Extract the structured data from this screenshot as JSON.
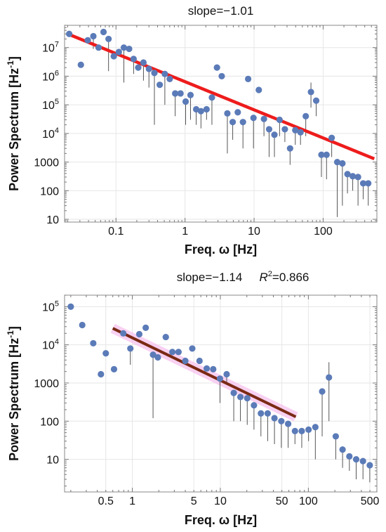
{
  "chart_data": [
    {
      "type": "scatter",
      "title": "slope=−1.01",
      "xlabel": "Freq. ω [Hz]",
      "ylabel": "Power Spectrum [Hz⁻¹]",
      "xscale": "log",
      "yscale": "log",
      "xlim": [
        0.018,
        600
      ],
      "ylim": [
        8,
        60000000
      ],
      "xticks": [
        {
          "v": 0.1,
          "label": "0.1"
        },
        {
          "v": 1,
          "label": "1"
        },
        {
          "v": 10,
          "label": "10"
        },
        {
          "v": 100,
          "label": "100"
        }
      ],
      "yticks": [
        {
          "v": 10,
          "label": "10"
        },
        {
          "v": 100,
          "label": "100"
        },
        {
          "v": 1000,
          "label": "1000"
        },
        {
          "v": 10000,
          "label": "10^4"
        },
        {
          "v": 100000,
          "label": "10^5"
        },
        {
          "v": 1000000,
          "label": "10^6"
        },
        {
          "v": 10000000,
          "label": "10^7"
        }
      ],
      "grid": true,
      "marker_color": "#5b7bb8",
      "fit_color": "#ee1c1c",
      "fit_line": {
        "x": [
          0.02,
          550
        ],
        "y": [
          30000000,
          1300
        ]
      },
      "points": [
        {
          "x": 0.021,
          "y": 30000000
        },
        {
          "x": 0.031,
          "y": 2500000
        },
        {
          "x": 0.039,
          "y": 18000000
        },
        {
          "x": 0.047,
          "y": 25000000,
          "lo": 9000000
        },
        {
          "x": 0.056,
          "y": 10000000
        },
        {
          "x": 0.066,
          "y": 35000000
        },
        {
          "x": 0.078,
          "y": 20000000,
          "lo": 1500000
        },
        {
          "x": 0.093,
          "y": 5000000
        },
        {
          "x": 0.11,
          "y": 7000000
        },
        {
          "x": 0.13,
          "y": 10000000,
          "lo": 600000
        },
        {
          "x": 0.155,
          "y": 9000000
        },
        {
          "x": 0.18,
          "y": 4000000,
          "lo": 1200000
        },
        {
          "x": 0.21,
          "y": 2000000
        },
        {
          "x": 0.25,
          "y": 3000000,
          "lo": 700000
        },
        {
          "x": 0.3,
          "y": 1800000,
          "lo": 400000
        },
        {
          "x": 0.36,
          "y": 1300000,
          "lo": 20000
        },
        {
          "x": 0.43,
          "y": 500000
        },
        {
          "x": 0.51,
          "y": 1200000,
          "lo": 100000
        },
        {
          "x": 0.6,
          "y": 800000
        },
        {
          "x": 0.72,
          "y": 250000,
          "lo": 40000
        },
        {
          "x": 0.86,
          "y": 250000
        },
        {
          "x": 1.02,
          "y": 130000,
          "lo": 20000
        },
        {
          "x": 1.2,
          "y": 220000,
          "lo": 30000
        },
        {
          "x": 1.45,
          "y": 70000,
          "lo": 20000
        },
        {
          "x": 1.7,
          "y": 60000,
          "lo": 15000
        },
        {
          "x": 2.05,
          "y": 70000,
          "lo": 30000
        },
        {
          "x": 2.45,
          "y": 180000,
          "lo": 20000
        },
        {
          "x": 2.9,
          "y": 2000000
        },
        {
          "x": 3.4,
          "y": 1000000
        },
        {
          "x": 4.1,
          "y": 50000,
          "lo": 2000
        },
        {
          "x": 4.9,
          "y": 25000,
          "lo": 6000
        },
        {
          "x": 5.8,
          "y": 55000
        },
        {
          "x": 6.9,
          "y": 25000,
          "lo": 3000
        },
        {
          "x": 8.2,
          "y": 800000
        },
        {
          "x": 9.8,
          "y": 35000,
          "lo": 3000
        },
        {
          "x": 11.7,
          "y": 330000
        },
        {
          "x": 13.9,
          "y": 32000,
          "lo": 8000
        },
        {
          "x": 16.5,
          "y": 14000,
          "lo": 1500
        },
        {
          "x": 19.7,
          "y": 9000,
          "lo": 1500
        },
        {
          "x": 23.4,
          "y": 30000,
          "lo": 8000
        },
        {
          "x": 27.9,
          "y": 14000,
          "lo": 5000
        },
        {
          "x": 33.2,
          "y": 3000,
          "lo": 800
        },
        {
          "x": 39.5,
          "y": 13000,
          "lo": 4000
        },
        {
          "x": 47,
          "y": 11000,
          "lo": 4000
        },
        {
          "x": 56,
          "y": 40000,
          "lo": 8000
        },
        {
          "x": 66.6,
          "y": 280000,
          "hi": 600000,
          "lo": 80000
        },
        {
          "x": 79.3,
          "y": 140000,
          "lo": 40000
        },
        {
          "x": 94.4,
          "y": 1800,
          "lo": 300
        },
        {
          "x": 112,
          "y": 1800,
          "lo": 250
        },
        {
          "x": 133,
          "y": 7000,
          "lo": 1500
        },
        {
          "x": 160,
          "y": 1000,
          "lo": 12
        },
        {
          "x": 190,
          "y": 900,
          "lo": 30
        },
        {
          "x": 225,
          "y": 380,
          "lo": 80
        },
        {
          "x": 268,
          "y": 320,
          "lo": 100
        },
        {
          "x": 320,
          "y": 300,
          "lo": 30
        },
        {
          "x": 380,
          "y": 180,
          "lo": 50
        },
        {
          "x": 450,
          "y": 180,
          "lo": 30
        }
      ]
    },
    {
      "type": "scatter",
      "title": "slope=−1.14",
      "r2_label": "R",
      "r2_sup": "2",
      "r2_value": "=0.866",
      "xlabel": "Freq. ω [Hz]",
      "ylabel": "Power Spectrum [Hz⁻¹]",
      "xscale": "log",
      "yscale": "log",
      "xlim": [
        0.17,
        600
      ],
      "ylim": [
        1.4,
        200000
      ],
      "xticks": [
        {
          "v": 0.5,
          "label": "0.5"
        },
        {
          "v": 1,
          "label": "1"
        },
        {
          "v": 5,
          "label": "5"
        },
        {
          "v": 10,
          "label": "10"
        },
        {
          "v": 50,
          "label": "50"
        },
        {
          "v": 100,
          "label": "100"
        },
        {
          "v": 500,
          "label": "500"
        }
      ],
      "yticks": [
        {
          "v": 10,
          "label": "10"
        },
        {
          "v": 100,
          "label": "100"
        },
        {
          "v": 1000,
          "label": "1000"
        },
        {
          "v": 10000,
          "label": "10^4"
        },
        {
          "v": 100000,
          "label": "10^5"
        }
      ],
      "grid": true,
      "marker_color": "#5b7bb8",
      "fit_color": "#7a2a14",
      "fit_band_color": "#f6c2ee",
      "fit_line": {
        "x": [
          0.6,
          72
        ],
        "y": [
          27000,
          130
        ]
      },
      "points": [
        {
          "x": 0.2,
          "y": 100000
        },
        {
          "x": 0.27,
          "y": 33000
        },
        {
          "x": 0.36,
          "y": 11000
        },
        {
          "x": 0.44,
          "y": 1700
        },
        {
          "x": 0.5,
          "y": 6000
        },
        {
          "x": 0.62,
          "y": 2300
        },
        {
          "x": 0.79,
          "y": 20000
        },
        {
          "x": 0.95,
          "y": 8000,
          "lo": 3000
        },
        {
          "x": 1.2,
          "y": 19000
        },
        {
          "x": 1.42,
          "y": 28000
        },
        {
          "x": 1.72,
          "y": 5500,
          "lo": 120
        },
        {
          "x": 1.95,
          "y": 4700
        },
        {
          "x": 2.4,
          "y": 16000
        },
        {
          "x": 2.85,
          "y": 6500
        },
        {
          "x": 3.35,
          "y": 6500
        },
        {
          "x": 4.0,
          "y": 3800
        },
        {
          "x": 4.8,
          "y": 8000
        },
        {
          "x": 5.8,
          "y": 3800
        },
        {
          "x": 7.0,
          "y": 2400
        },
        {
          "x": 8.3,
          "y": 2300
        },
        {
          "x": 9.9,
          "y": 1300,
          "lo": 300
        },
        {
          "x": 11.8,
          "y": 1700,
          "lo": 1000
        },
        {
          "x": 14.2,
          "y": 550,
          "lo": 100
        },
        {
          "x": 16.9,
          "y": 430,
          "lo": 100
        },
        {
          "x": 20.2,
          "y": 400,
          "lo": 80
        },
        {
          "x": 24.1,
          "y": 260,
          "lo": 60
        },
        {
          "x": 28.9,
          "y": 160,
          "lo": 40
        },
        {
          "x": 34.5,
          "y": 160,
          "lo": 30
        },
        {
          "x": 41.2,
          "y": 120,
          "lo": 25
        },
        {
          "x": 49.3,
          "y": 100,
          "lo": 20
        },
        {
          "x": 58.9,
          "y": 85,
          "lo": 20
        },
        {
          "x": 70.4,
          "y": 55,
          "lo": 25
        },
        {
          "x": 84.1,
          "y": 55,
          "lo": 20
        },
        {
          "x": 100.5,
          "y": 60,
          "lo": 30
        },
        {
          "x": 120,
          "y": 70,
          "lo": 10
        },
        {
          "x": 143.4,
          "y": 600,
          "lo": 40
        },
        {
          "x": 171.3,
          "y": 1400,
          "hi": 3500,
          "lo": 100
        },
        {
          "x": 204.7,
          "y": 40,
          "lo": 10
        },
        {
          "x": 244.6,
          "y": 18,
          "lo": 6
        },
        {
          "x": 292.2,
          "y": 12,
          "lo": 5
        },
        {
          "x": 349.1,
          "y": 10,
          "lo": 3
        },
        {
          "x": 417.1,
          "y": 9,
          "lo": 3
        },
        {
          "x": 498.3,
          "y": 7,
          "lo": 2.5
        }
      ]
    }
  ]
}
